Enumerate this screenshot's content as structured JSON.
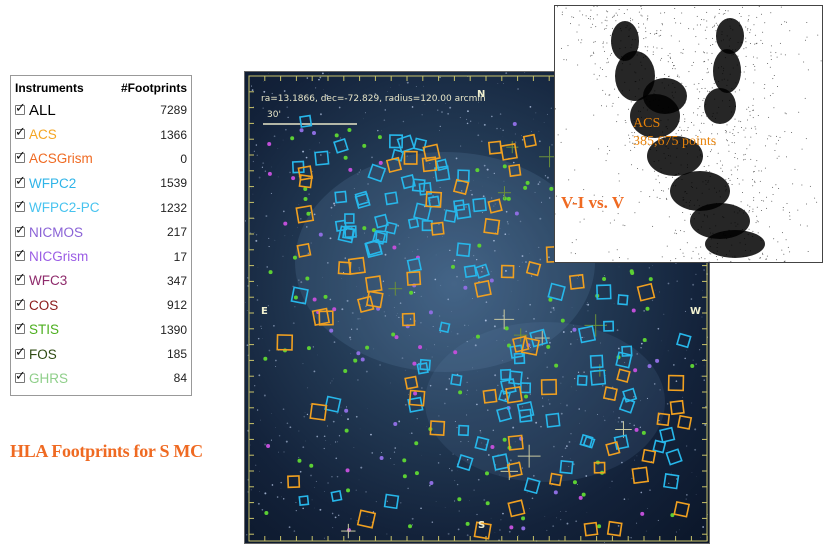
{
  "table": {
    "col_instruments": "Instruments",
    "col_footprints": "#Footprints",
    "rows": [
      {
        "name": "ALL",
        "count": "7289",
        "color": "#000000"
      },
      {
        "name": "ACS",
        "count": "1366",
        "color": "#f5a623"
      },
      {
        "name": "ACSGrism",
        "count": "0",
        "color": "#ef6a22"
      },
      {
        "name": "WFPC2",
        "count": "1539",
        "color": "#2fb4e8"
      },
      {
        "name": "WFPC2-PC",
        "count": "1232",
        "color": "#47c3ef"
      },
      {
        "name": "NICMOS",
        "count": "217",
        "color": "#8a62d6"
      },
      {
        "name": "NICGrism",
        "count": "17",
        "color": "#9b5de5"
      },
      {
        "name": "WFC3",
        "count": "347",
        "color": "#8e2a6b"
      },
      {
        "name": "COS",
        "count": "912",
        "color": "#8b1a1a"
      },
      {
        "name": "STIS",
        "count": "1390",
        "color": "#4caf1e"
      },
      {
        "name": "FOS",
        "count": "185",
        "color": "#2e4a12"
      },
      {
        "name": "GHRS",
        "count": "84",
        "color": "#8fcf8a"
      }
    ]
  },
  "caption": "HLA Footprints for S MC",
  "sky": {
    "coords": "ra=13.1866, dec=-72.829, radius=120.00 arcmin",
    "scale": "30'",
    "north": "N",
    "south": "S",
    "east": "E",
    "west": "W"
  },
  "cmd": {
    "instrument": "ACS",
    "points": "385,675 points",
    "title": "V-I vs. V"
  }
}
